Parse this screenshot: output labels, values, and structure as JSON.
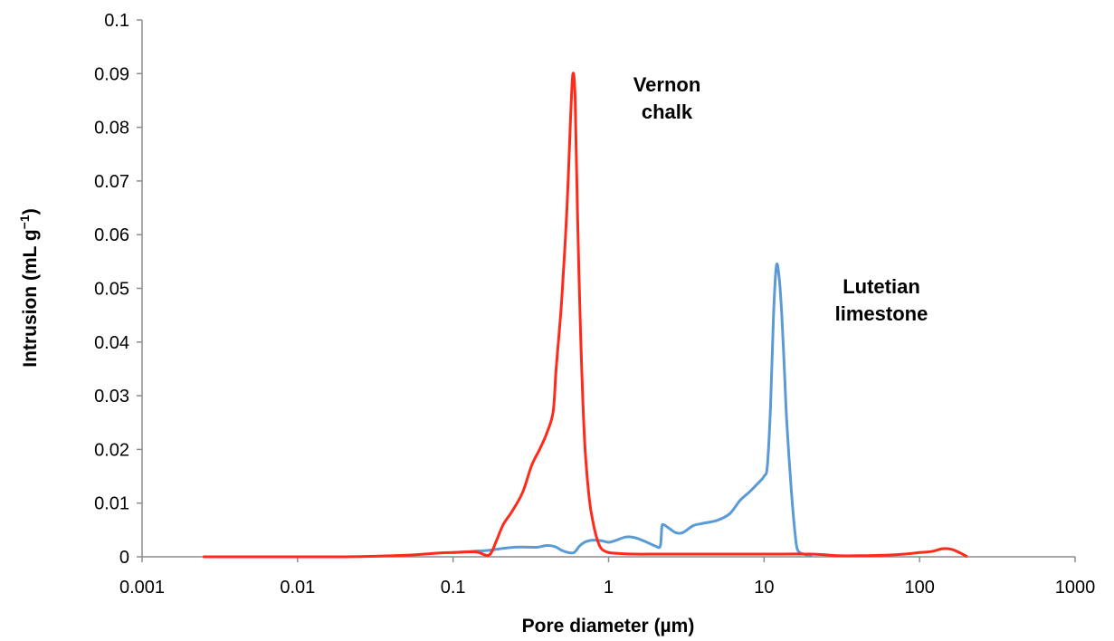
{
  "chart_data": {
    "type": "line",
    "title": "",
    "xlabel": "Pore diameter (µm)",
    "ylabel_main": "Intrusion (mL g",
    "ylabel_sup": "−1",
    "ylabel_close": ")",
    "x_scale": "log",
    "xlim": [
      0.001,
      1000
    ],
    "ylim": [
      0,
      0.1
    ],
    "x_ticks": [
      0.001,
      0.01,
      0.1,
      1,
      10,
      100,
      1000
    ],
    "x_tick_labels": [
      "0.001",
      "0.01",
      "0.1",
      "1",
      "10",
      "100",
      "1000"
    ],
    "y_ticks": [
      0,
      0.01,
      0.02,
      0.03,
      0.04,
      0.05,
      0.06,
      0.07,
      0.08,
      0.09,
      0.1
    ],
    "y_tick_labels": [
      "0",
      "0.01",
      "0.02",
      "0.03",
      "0.04",
      "0.05",
      "0.06",
      "0.07",
      "0.08",
      "0.09",
      "0.1"
    ],
    "grid": false,
    "legend": "none",
    "annotations": [
      {
        "lines": [
          "Vernon",
          "chalk"
        ],
        "series": "vernon"
      },
      {
        "lines": [
          "Lutetian",
          "limestone"
        ],
        "series": "lutetian"
      }
    ],
    "series": [
      {
        "key": "vernon",
        "color": "#ff2a1a",
        "x": [
          0.0025,
          0.006,
          0.02,
          0.05,
          0.08,
          0.1,
          0.14,
          0.17,
          0.19,
          0.21,
          0.24,
          0.28,
          0.32,
          0.36,
          0.4,
          0.44,
          0.46,
          0.5,
          0.54,
          0.57,
          0.59,
          0.61,
          0.63,
          0.66,
          0.7,
          0.75,
          0.8,
          0.85,
          0.9,
          1.0,
          1.2,
          1.5,
          2,
          3,
          5,
          10,
          20,
          30,
          40,
          60,
          80,
          100,
          120,
          140,
          160,
          180,
          200
        ],
        "y": [
          0.0,
          0.0,
          0.0,
          0.0003,
          0.0007,
          0.0008,
          0.0009,
          0.0003,
          0.003,
          0.006,
          0.0085,
          0.012,
          0.017,
          0.02,
          0.023,
          0.027,
          0.035,
          0.048,
          0.065,
          0.082,
          0.09,
          0.085,
          0.065,
          0.042,
          0.022,
          0.011,
          0.006,
          0.003,
          0.0015,
          0.0008,
          0.0006,
          0.0005,
          0.0005,
          0.0005,
          0.0005,
          0.0005,
          0.0005,
          0.0002,
          0.0002,
          0.0003,
          0.0005,
          0.0008,
          0.001,
          0.0015,
          0.0014,
          0.0008,
          0.0001
        ]
      },
      {
        "key": "lutetian",
        "color": "#5b9bd5",
        "x": [
          0.1,
          0.13,
          0.17,
          0.2,
          0.25,
          0.3,
          0.35,
          0.4,
          0.45,
          0.5,
          0.55,
          0.6,
          0.65,
          0.7,
          0.75,
          0.8,
          0.9,
          1.0,
          1.1,
          1.3,
          1.5,
          1.8,
          2.0,
          2.15,
          2.2,
          2.25,
          2.4,
          2.7,
          3.0,
          3.5,
          4.0,
          5.0,
          6.0,
          7.0,
          8.0,
          9.0,
          10.0,
          10.5,
          11.0,
          11.5,
          12.0,
          12.5,
          13.0,
          13.5,
          14.0,
          15.0,
          16.0,
          16.5,
          17.0,
          17.5,
          18.0,
          19.0,
          20.0
        ],
        "y": [
          0.0008,
          0.001,
          0.0012,
          0.0015,
          0.0018,
          0.0018,
          0.0018,
          0.0021,
          0.0019,
          0.0012,
          0.0008,
          0.0008,
          0.002,
          0.0027,
          0.003,
          0.0031,
          0.003,
          0.0027,
          0.003,
          0.0037,
          0.0035,
          0.0026,
          0.002,
          0.002,
          0.0055,
          0.006,
          0.0055,
          0.0045,
          0.0045,
          0.0058,
          0.0062,
          0.0068,
          0.008,
          0.0105,
          0.012,
          0.0135,
          0.015,
          0.017,
          0.028,
          0.045,
          0.0542,
          0.052,
          0.045,
          0.035,
          0.025,
          0.012,
          0.003,
          0.0012,
          0.0008,
          0.0006,
          0.0005,
          0.0003,
          0.0002
        ]
      }
    ]
  }
}
